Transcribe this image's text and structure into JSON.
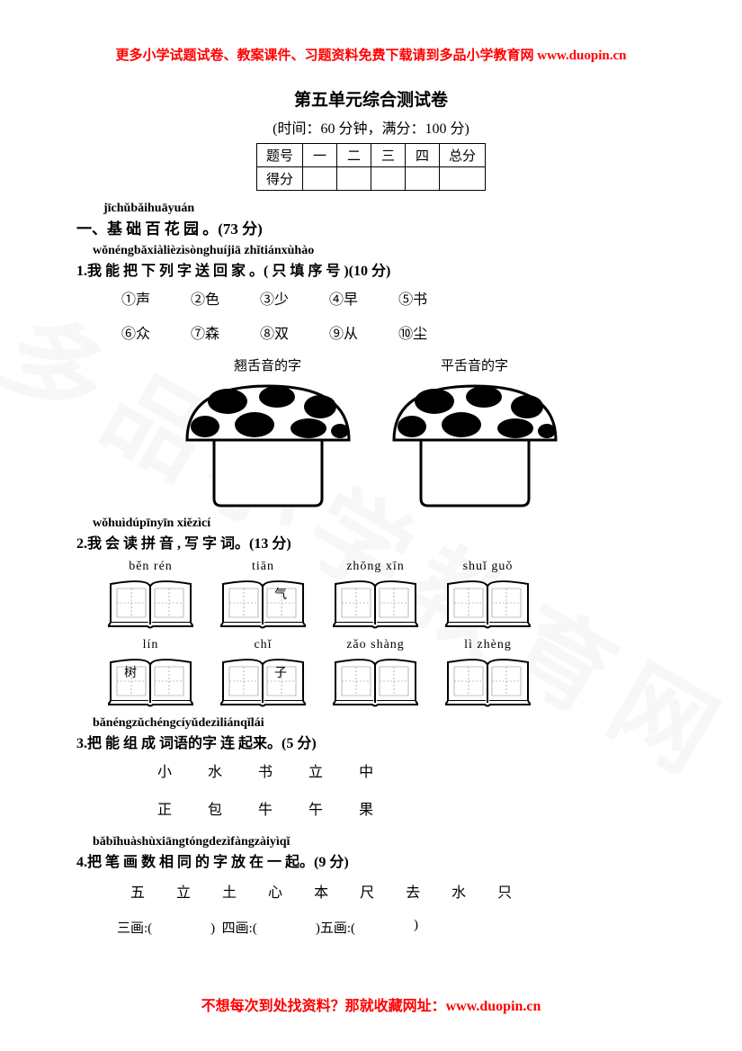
{
  "header": {
    "banner_prefix": "更多小学试题试卷、教案课件、习题资料免费下载请到多品小学教育网 ",
    "banner_url": "www.duopin.cn"
  },
  "title": "第五单元综合测试卷",
  "subtitle": "(时间：60 分钟，满分：100 分)",
  "score_table": {
    "row1": [
      "题号",
      "一",
      "二",
      "三",
      "四",
      "总分"
    ],
    "row2_label": "得分"
  },
  "section1": {
    "pinyin": "jīchǔbǎihuāyuán",
    "heading": "一、基 础 百 花 园 。(73 分)"
  },
  "q1": {
    "pinyin": "wǒnéngbǎxiàlièzìsònghuíjiā   zhǐtiánxùhào",
    "heading": "1.我 能 把 下 列 字 送  回 家 。( 只  填 序 号 )(10 分)",
    "row1": [
      "①声",
      "②色",
      "③少",
      "④早",
      "⑤书"
    ],
    "row2": [
      "⑥众",
      "⑦森",
      "⑧双",
      "⑨从",
      "⑩尘"
    ],
    "mushroom1_label": "翘舌音的字",
    "mushroom2_label": "平舌音的字"
  },
  "q2": {
    "pinyin": "wǒhuìdúpīnyīn xiězìcí",
    "heading": "2.我 会 读 拼 音 , 写 字 词。(13 分)",
    "books_row1": [
      {
        "pinyin": "běn rén",
        "chars": [
          "",
          ""
        ]
      },
      {
        "pinyin": "tiān",
        "chars": [
          "",
          "气"
        ]
      },
      {
        "pinyin": "zhōng  xīn",
        "chars": [
          "",
          ""
        ]
      },
      {
        "pinyin": "shuǐ  guǒ",
        "chars": [
          "",
          ""
        ]
      }
    ],
    "books_row2": [
      {
        "pinyin": "lín",
        "chars": [
          "树",
          ""
        ]
      },
      {
        "pinyin": "chǐ",
        "chars": [
          "",
          "子"
        ]
      },
      {
        "pinyin": "zǎo shàng",
        "chars": [
          "",
          ""
        ]
      },
      {
        "pinyin": "lì zhèng",
        "chars": [
          "",
          ""
        ]
      }
    ]
  },
  "q3": {
    "pinyin": "bǎnéngzǔchéngcíyǔdezìliánqǐlái",
    "heading": "3.把 能 组  成  词语的字 连 起来。(5 分)",
    "row1": [
      "小",
      "水",
      "书",
      "立",
      "中"
    ],
    "row2": [
      "正",
      "包",
      "牛",
      "午",
      "果"
    ]
  },
  "q4": {
    "pinyin": "bǎbǐhuàshùxiāngtóngdezìfàngzàiyìqǐ",
    "heading": "4.把 笔 画 数  相   同 的 字 放  在 一 起。(9 分)",
    "chars": [
      "五",
      "立",
      "土",
      "心",
      "本",
      "尺",
      "去",
      "水",
      "只"
    ],
    "blanks": {
      "b3": "三画:(",
      "b4": ")  四画:(",
      "b5": ")五画:(",
      "end": ")"
    }
  },
  "footer": {
    "text": "不想每次到处找资料？那就收藏网址：",
    "url": "www.duopin.cn"
  },
  "colors": {
    "red": "#ff0000",
    "black": "#000000",
    "white": "#ffffff"
  }
}
